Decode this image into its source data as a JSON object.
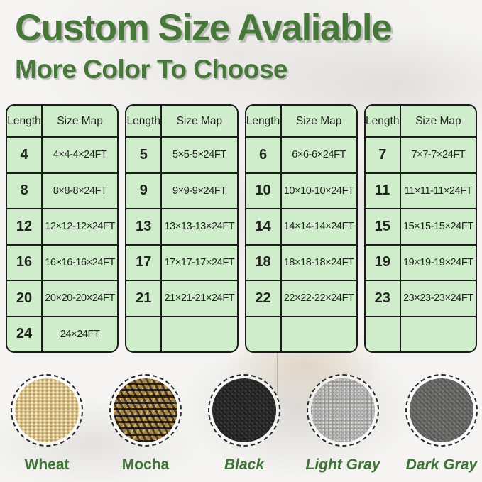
{
  "title": "Custom Size Avaliable",
  "subtitle": "More Color To Choose",
  "table_header": {
    "length": "Length",
    "size_map": "Size Map"
  },
  "tables": [
    {
      "rows": [
        [
          "4",
          "4×4-4×24FT"
        ],
        [
          "8",
          "8×8-8×24FT"
        ],
        [
          "12",
          "12×12-12×24FT"
        ],
        [
          "16",
          "16×16-16×24FT"
        ],
        [
          "20",
          "20×20-20×24FT"
        ],
        [
          "24",
          "24×24FT"
        ]
      ]
    },
    {
      "rows": [
        [
          "5",
          "5×5-5×24FT"
        ],
        [
          "9",
          "9×9-9×24FT"
        ],
        [
          "13",
          "13×13-13×24FT"
        ],
        [
          "17",
          "17×17-17×24FT"
        ],
        [
          "21",
          "21×21-21×24FT"
        ],
        [
          "",
          ""
        ]
      ]
    },
    {
      "rows": [
        [
          "6",
          "6×6-6×24FT"
        ],
        [
          "10",
          "10×10-10×24FT"
        ],
        [
          "14",
          "14×14-14×24FT"
        ],
        [
          "18",
          "18×18-18×24FT"
        ],
        [
          "22",
          "22×22-22×24FT"
        ],
        [
          "",
          ""
        ]
      ]
    },
    {
      "rows": [
        [
          "7",
          "7×7-7×24FT"
        ],
        [
          "11",
          "11×11-11×24FT"
        ],
        [
          "15",
          "15×15-15×24FT"
        ],
        [
          "19",
          "19×19-19×24FT"
        ],
        [
          "23",
          "23×23-23×24FT"
        ],
        [
          "",
          ""
        ]
      ]
    }
  ],
  "swatches": [
    {
      "name": "Wheat",
      "slug": "wheat",
      "italic": false,
      "base_color": "#d9c084"
    },
    {
      "name": "Mocha",
      "slug": "mocha",
      "italic": false,
      "base_color": "#a8854a"
    },
    {
      "name": "Black",
      "slug": "black",
      "italic": true,
      "base_color": "#2b2b2b"
    },
    {
      "name": "Light Gray",
      "slug": "light-gray",
      "italic": true,
      "base_color": "#b4b3b1"
    },
    {
      "name": "Dark Gray",
      "slug": "dark-gray",
      "italic": true,
      "base_color": "#6c6b69"
    }
  ],
  "colors": {
    "accent_green": "#47783a",
    "label_green": "#3f7337",
    "table_bg": "#cfedca",
    "table_border": "#1c1c1c",
    "page_bg": "#f5f4f2"
  }
}
